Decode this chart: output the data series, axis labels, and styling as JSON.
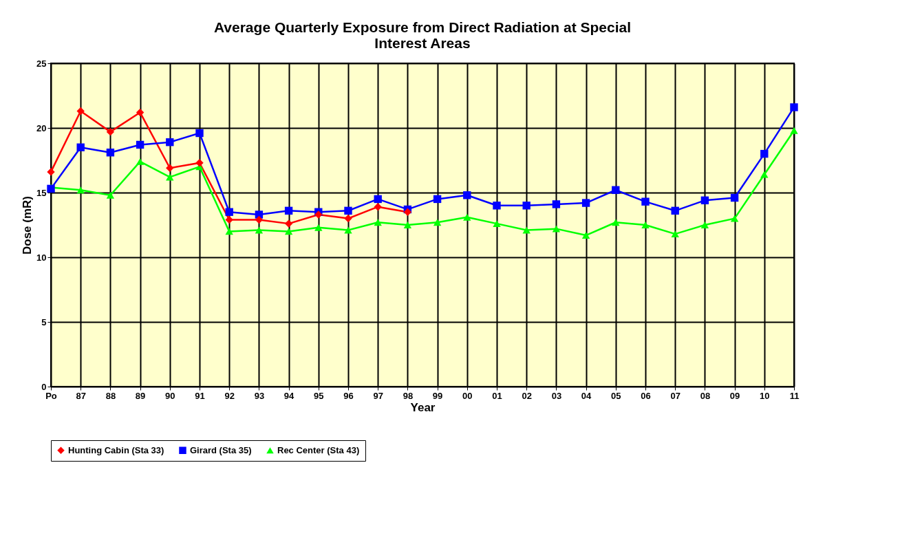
{
  "chart_data": {
    "type": "line",
    "title": "Average Quarterly Exposure from Direct Radiation at Special Interest Areas",
    "xlabel": "Year",
    "ylabel": "Dose (mR)",
    "categories": [
      "Po",
      "87",
      "88",
      "89",
      "90",
      "91",
      "92",
      "93",
      "94",
      "95",
      "96",
      "97",
      "98",
      "99",
      "00",
      "01",
      "02",
      "03",
      "04",
      "05",
      "06",
      "07",
      "08",
      "09",
      "10",
      "11"
    ],
    "series": [
      {
        "name": "Hunting Cabin (Sta 33)",
        "color": "#ff0000",
        "marker": "diamond",
        "values": [
          16.6,
          21.3,
          19.7,
          21.2,
          16.9,
          17.3,
          12.9,
          12.9,
          12.6,
          13.3,
          13.0,
          13.9,
          13.5,
          null,
          null,
          null,
          null,
          null,
          null,
          null,
          null,
          null,
          null,
          null,
          null,
          null
        ]
      },
      {
        "name": "Girard (Sta 35)",
        "color": "#0000ff",
        "marker": "square",
        "values": [
          15.3,
          18.5,
          18.1,
          18.7,
          18.9,
          19.6,
          13.5,
          13.3,
          13.6,
          13.5,
          13.6,
          14.5,
          13.7,
          14.5,
          14.8,
          14.0,
          14.0,
          14.1,
          14.2,
          15.2,
          14.3,
          13.6,
          14.4,
          14.6,
          18.0,
          21.6
        ]
      },
      {
        "name": "Rec Center (Sta 43)",
        "color": "#00ff00",
        "marker": "triangle",
        "values": [
          15.4,
          15.2,
          14.8,
          17.4,
          16.2,
          17.0,
          12.0,
          12.1,
          12.0,
          12.3,
          12.1,
          12.7,
          12.5,
          12.7,
          13.1,
          12.6,
          12.1,
          12.2,
          11.7,
          12.7,
          12.5,
          11.8,
          12.5,
          13.0,
          16.4,
          19.8
        ]
      }
    ],
    "ylim": [
      0,
      25
    ],
    "yticks": [
      0,
      5,
      10,
      15,
      20,
      25
    ],
    "grid": true,
    "legend": "bottom",
    "line_style": "solid"
  }
}
